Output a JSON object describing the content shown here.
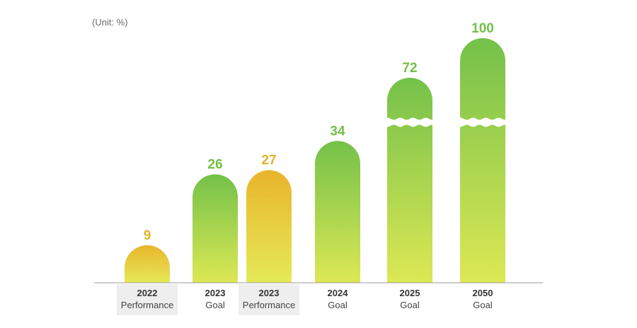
{
  "unit_label": "(Unit: %)",
  "colors": {
    "goal_top": "#74c14a",
    "goal_bottom": "#dde854",
    "performance_top": "#e8b42c",
    "performance_bottom": "#e6ea58",
    "goal_value_text": "#72c044",
    "performance_value_text": "#e3b22b",
    "highlight_box": "#eeeeee",
    "axis_line": "#9a9a9a"
  },
  "chart_data": {
    "type": "bar",
    "title": "",
    "xlabel": "",
    "ylabel": "",
    "unit": "%",
    "categories": [
      "2022 Performance",
      "2023 Goal",
      "2023 Performance",
      "2024 Goal",
      "2025 Goal",
      "2050 Goal"
    ],
    "bars": [
      {
        "year": "2022",
        "kind": "Performance",
        "value": 9,
        "label": "9",
        "style": "performance",
        "axis_break": false
      },
      {
        "year": "2023",
        "kind": "Goal",
        "value": 26,
        "label": "26",
        "style": "goal",
        "axis_break": false
      },
      {
        "year": "2023",
        "kind": "Performance",
        "value": 27,
        "label": "27",
        "style": "performance",
        "axis_break": false
      },
      {
        "year": "2024",
        "kind": "Goal",
        "value": 34,
        "label": "34",
        "style": "goal",
        "axis_break": false
      },
      {
        "year": "2025",
        "kind": "Goal",
        "value": 72,
        "label": "72",
        "style": "goal",
        "axis_break": true
      },
      {
        "year": "2050",
        "kind": "Goal",
        "value": 100,
        "label": "100",
        "style": "goal",
        "axis_break": true
      }
    ],
    "grid": false,
    "legend": "none"
  }
}
